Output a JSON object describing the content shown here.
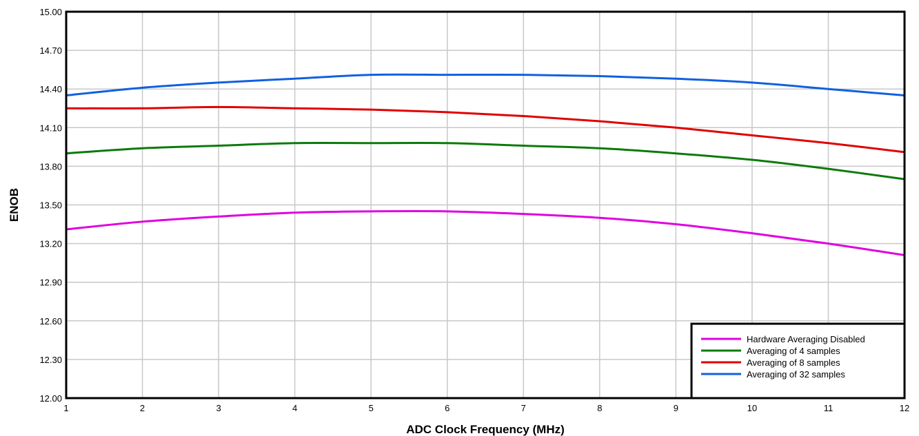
{
  "chart_data": {
    "type": "line",
    "title": "",
    "xlabel": "ADC Clock Frequency (MHz)",
    "ylabel": "ENOB",
    "xlim": [
      1,
      12
    ],
    "ylim": [
      12.0,
      15.0
    ],
    "x_ticks": [
      "1",
      "2",
      "3",
      "4",
      "5",
      "6",
      "7",
      "8",
      "9",
      "10",
      "11",
      "12"
    ],
    "y_ticks": [
      "12.00",
      "12.30",
      "12.60",
      "12.90",
      "13.20",
      "13.50",
      "13.80",
      "14.10",
      "14.40",
      "14.70",
      "15.00"
    ],
    "grid": true,
    "legend_position": "bottom-right",
    "x": [
      1,
      2,
      3,
      4,
      5,
      6,
      7,
      8,
      9,
      10,
      11,
      12
    ],
    "series": [
      {
        "name": "Hardware Averaging Disabled",
        "color": "#e000e0",
        "values": [
          13.31,
          13.37,
          13.41,
          13.44,
          13.45,
          13.45,
          13.43,
          13.4,
          13.35,
          13.28,
          13.2,
          13.11
        ]
      },
      {
        "name": "Averaging of 4 samples",
        "color": "#0a7a0a",
        "values": [
          13.9,
          13.94,
          13.96,
          13.98,
          13.98,
          13.98,
          13.96,
          13.94,
          13.9,
          13.85,
          13.78,
          13.7
        ]
      },
      {
        "name": "Averaging of 8 samples",
        "color": "#e00000",
        "values": [
          14.25,
          14.25,
          14.26,
          14.25,
          14.24,
          14.22,
          14.19,
          14.15,
          14.1,
          14.04,
          13.98,
          13.91
        ]
      },
      {
        "name": "Averaging of 32 samples",
        "color": "#1060e0",
        "values": [
          14.35,
          14.41,
          14.45,
          14.48,
          14.51,
          14.51,
          14.51,
          14.5,
          14.48,
          14.45,
          14.4,
          14.35
        ]
      }
    ]
  }
}
